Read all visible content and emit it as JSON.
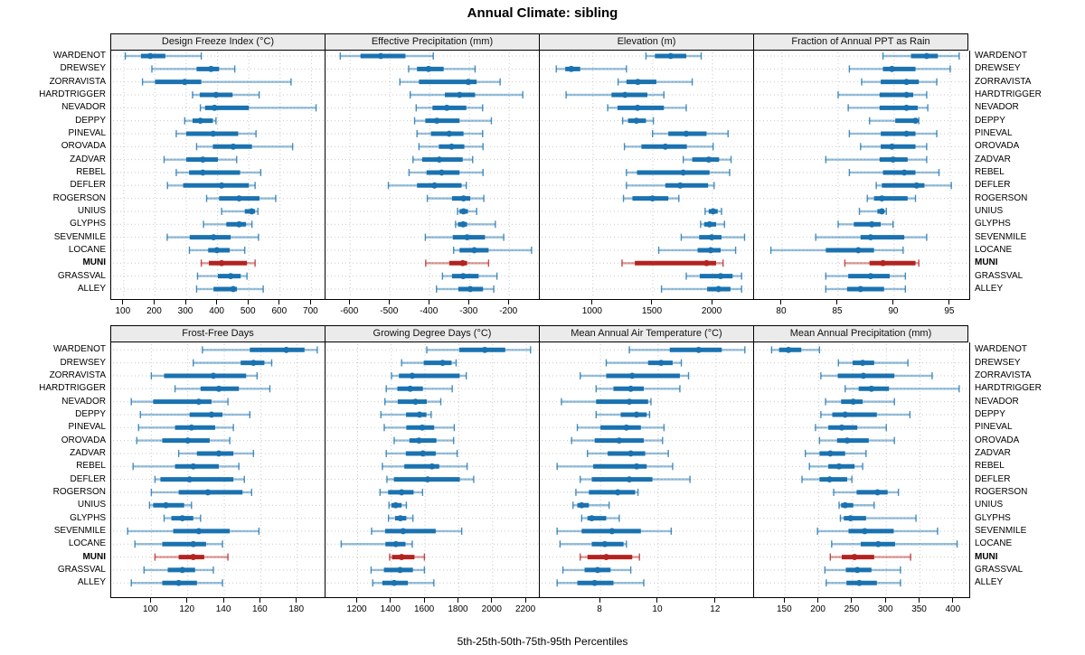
{
  "title": "Annual Climate: sibling",
  "caption": "5th-25th-50th-75th-95th Percentiles",
  "percentile_labels": [
    "5th",
    "25th",
    "50th",
    "75th",
    "95th"
  ],
  "highlight_station": "MUNI",
  "stations": [
    "WARDENOT",
    "DREWSEY",
    "ZORRAVISTA",
    "HARDTRIGGER",
    "NEVADOR",
    "DEPPY",
    "PINEVAL",
    "OROVADA",
    "ZADVAR",
    "REBEL",
    "DEFLER",
    "ROGERSON",
    "UNIUS",
    "GLYPHS",
    "SEVENMILE",
    "LOCANE",
    "MUNI",
    "GRASSVAL",
    "ALLEY"
  ],
  "colors": {
    "blue": "#1a72b0",
    "red": "#b3231f",
    "grid": "#c9c9c9",
    "header_bg": "#ebebeb",
    "border": "#000000"
  },
  "chart_data": [
    {
      "type": "dotplot-percentiles",
      "band": "top",
      "title": "Design Freeze Index (°C)",
      "xticks": [
        100,
        200,
        300,
        400,
        500,
        600,
        700
      ],
      "xlim": [
        60,
        748
      ],
      "values": [
        [
          105,
          155,
          185,
          233,
          348
        ],
        [
          190,
          333,
          379,
          405,
          455
        ],
        [
          160,
          200,
          295,
          348,
          635
        ],
        [
          320,
          343,
          395,
          448,
          533
        ],
        [
          345,
          360,
          390,
          500,
          715
        ],
        [
          295,
          320,
          345,
          385,
          395
        ],
        [
          268,
          300,
          386,
          466,
          523
        ],
        [
          333,
          385,
          450,
          510,
          640
        ],
        [
          229,
          300,
          353,
          401,
          461
        ],
        [
          268,
          309,
          353,
          472,
          538
        ],
        [
          240,
          290,
          413,
          500,
          520
        ],
        [
          365,
          405,
          469,
          534,
          586
        ],
        [
          413,
          487,
          509,
          520,
          529
        ],
        [
          355,
          428,
          469,
          491,
          510
        ],
        [
          239,
          311,
          387,
          442,
          531
        ],
        [
          310,
          370,
          398,
          439,
          487
        ],
        [
          348,
          372,
          413,
          494,
          520
        ],
        [
          336,
          401,
          442,
          474,
          494
        ],
        [
          333,
          387,
          450,
          462,
          546
        ]
      ]
    },
    {
      "type": "dotplot-percentiles",
      "band": "top",
      "title": "Effective Precipitation (mm)",
      "xticks": [
        -600,
        -500,
        -400,
        -300,
        -200
      ],
      "xlim": [
        -662,
        -121
      ],
      "values": [
        [
          -625,
          -574,
          -523,
          -461,
          -391
        ],
        [
          -453,
          -432,
          -403,
          -365,
          -286
        ],
        [
          -475,
          -427,
          -303,
          -282,
          -223
        ],
        [
          -449,
          -362,
          -325,
          -286,
          -166
        ],
        [
          -434,
          -393,
          -357,
          -308,
          -267
        ],
        [
          -438,
          -411,
          -382,
          -325,
          -245
        ],
        [
          -432,
          -397,
          -351,
          -315,
          -267
        ],
        [
          -427,
          -377,
          -345,
          -313,
          -266
        ],
        [
          -442,
          -419,
          -376,
          -317,
          -292
        ],
        [
          -452,
          -408,
          -370,
          -325,
          -266
        ],
        [
          -504,
          -432,
          -388,
          -320,
          -308
        ],
        [
          -406,
          -344,
          -315,
          -298,
          -264
        ],
        [
          -330,
          -325,
          -315,
          -304,
          -282
        ],
        [
          -335,
          -329,
          -316,
          -306,
          -235
        ],
        [
          -411,
          -342,
          -306,
          -261,
          -214
        ],
        [
          -340,
          -325,
          -288,
          -252,
          -144
        ],
        [
          -410,
          -351,
          -317,
          -306,
          -252
        ],
        [
          -368,
          -344,
          -316,
          -277,
          -231
        ],
        [
          -383,
          -328,
          -298,
          -266,
          -239
        ]
      ]
    },
    {
      "type": "dotplot-percentiles",
      "band": "top",
      "title": "Elevation (m)",
      "xticks": [
        1000,
        1500,
        2000
      ],
      "xlim": [
        555,
        2355
      ],
      "values": [
        [
          1443,
          1518,
          1650,
          1780,
          1905
        ],
        [
          693,
          768,
          818,
          893,
          1280
        ],
        [
          1210,
          1280,
          1375,
          1530,
          1830
        ],
        [
          775,
          1155,
          1268,
          1455,
          1593
        ],
        [
          1123,
          1205,
          1373,
          1593,
          1780
        ],
        [
          1248,
          1293,
          1363,
          1443,
          1505
        ],
        [
          1498,
          1630,
          1780,
          1950,
          2130
        ],
        [
          1263,
          1405,
          1605,
          1785,
          2005
        ],
        [
          1755,
          1830,
          1968,
          2055,
          2155
        ],
        [
          1280,
          1368,
          1755,
          1975,
          2143
        ],
        [
          1280,
          1605,
          1730,
          1963,
          2013
        ],
        [
          1255,
          1330,
          1498,
          1630,
          1718
        ],
        [
          1938,
          1968,
          2005,
          2043,
          2075
        ],
        [
          1900,
          1930,
          1975,
          2030,
          2100
        ],
        [
          1738,
          1888,
          1993,
          2075,
          2268
        ],
        [
          1550,
          1875,
          1985,
          2068,
          2193
        ],
        [
          1243,
          1350,
          1950,
          2030,
          2088
        ],
        [
          1780,
          1893,
          2068,
          2168,
          2243
        ],
        [
          1573,
          1955,
          2050,
          2150,
          2243
        ]
      ]
    },
    {
      "type": "dotplot-percentiles",
      "band": "top",
      "title": "Fraction of Annual PPT as Rain",
      "xticks": [
        80,
        85,
        90,
        95
      ],
      "xlim": [
        77.5,
        96.7
      ],
      "values": [
        [
          89,
          91.5,
          92.9,
          93.9,
          95.8
        ],
        [
          86,
          89,
          89.8,
          91.9,
          95
        ],
        [
          87.1,
          88.8,
          91.1,
          92.2,
          93.8
        ],
        [
          85,
          88.7,
          91.1,
          91.7,
          92.9
        ],
        [
          85.9,
          88.7,
          91.1,
          92.1,
          93
        ],
        [
          87.8,
          90.1,
          91.9,
          92.1,
          92.2
        ],
        [
          86,
          88.8,
          91.1,
          91.9,
          93.8
        ],
        [
          87,
          88.8,
          89.8,
          91.9,
          92.9
        ],
        [
          83.9,
          88.7,
          89.9,
          91.2,
          92.9
        ],
        [
          86,
          89,
          90.9,
          91.9,
          94
        ],
        [
          88.4,
          88.9,
          92,
          92.7,
          95.1
        ],
        [
          87.6,
          88.2,
          88.9,
          91.2,
          91.9
        ],
        [
          86.9,
          88.5,
          88.9,
          89.1,
          89.3
        ],
        [
          85,
          86.4,
          88,
          88.8,
          89.9
        ],
        [
          83,
          87,
          87.9,
          90.9,
          92.9
        ],
        [
          79,
          83.9,
          86.8,
          88.2,
          90.8
        ],
        [
          85.6,
          87.8,
          89,
          91.9,
          92.2
        ],
        [
          83.9,
          85.9,
          87.9,
          89.6,
          91
        ],
        [
          83.9,
          85.8,
          87,
          89.1,
          91
        ]
      ]
    },
    {
      "type": "dotplot-percentiles",
      "band": "bottom",
      "title": "Frost-Free Days",
      "xticks": [
        100,
        120,
        140,
        160,
        180
      ],
      "xlim": [
        78,
        196
      ],
      "values": [
        [
          128,
          154,
          174,
          184,
          191
        ],
        [
          123,
          149,
          156,
          162,
          166
        ],
        [
          100,
          107,
          134,
          152,
          158
        ],
        [
          113,
          127,
          137,
          148,
          165
        ],
        [
          89,
          101,
          126,
          133,
          142
        ],
        [
          94,
          121,
          133,
          139,
          154
        ],
        [
          93,
          113,
          122,
          135,
          145
        ],
        [
          92,
          106,
          120,
          132,
          143
        ],
        [
          115,
          125,
          137,
          145,
          156
        ],
        [
          90,
          113,
          123,
          137,
          148
        ],
        [
          102,
          105,
          121,
          145,
          151
        ],
        [
          100,
          115,
          131,
          150,
          155
        ],
        [
          99,
          101,
          108,
          118,
          122
        ],
        [
          107,
          111,
          117,
          123,
          127
        ],
        [
          87,
          112,
          126,
          143,
          159
        ],
        [
          91,
          106,
          123,
          130,
          139
        ],
        [
          102,
          115,
          123,
          129,
          142
        ],
        [
          96,
          109,
          117,
          124,
          134
        ],
        [
          89,
          106,
          115,
          125,
          139
        ]
      ]
    },
    {
      "type": "dotplot-percentiles",
      "band": "bottom",
      "title": "Growing Degree Days (°C)",
      "xticks": [
        1200,
        1400,
        1600,
        1800,
        2000,
        2200
      ],
      "xlim": [
        1010,
        2285
      ],
      "values": [
        [
          1610,
          1803,
          1954,
          2075,
          2225
        ],
        [
          1461,
          1592,
          1704,
          1757,
          1784
        ],
        [
          1401,
          1445,
          1524,
          1805,
          1844
        ],
        [
          1370,
          1436,
          1512,
          1587,
          1761
        ],
        [
          1362,
          1438,
          1543,
          1610,
          1693
        ],
        [
          1338,
          1487,
          1567,
          1608,
          1636
        ],
        [
          1358,
          1489,
          1583,
          1654,
          1773
        ],
        [
          1417,
          1507,
          1564,
          1667,
          1769
        ],
        [
          1370,
          1486,
          1587,
          1663,
          1790
        ],
        [
          1347,
          1477,
          1641,
          1684,
          1849
        ],
        [
          1374,
          1415,
          1615,
          1806,
          1888
        ],
        [
          1333,
          1381,
          1461,
          1532,
          1585
        ],
        [
          1386,
          1401,
          1426,
          1461,
          1489
        ],
        [
          1383,
          1422,
          1454,
          1489,
          1528
        ],
        [
          1283,
          1363,
          1470,
          1663,
          1817
        ],
        [
          1103,
          1365,
          1427,
          1484,
          1524
        ],
        [
          1390,
          1404,
          1461,
          1537,
          1596
        ],
        [
          1280,
          1356,
          1452,
          1528,
          1596
        ],
        [
          1290,
          1347,
          1417,
          1498,
          1652
        ]
      ]
    },
    {
      "type": "dotplot-percentiles",
      "band": "bottom",
      "title": "Mean Annual Air Temperature (°C)",
      "xticks": [
        8,
        10,
        12
      ],
      "xlim": [
        5.9,
        13.35
      ],
      "values": [
        [
          9.0,
          10.4,
          11.4,
          12.2,
          13.0
        ],
        [
          8.2,
          9.65,
          10.1,
          10.5,
          10.8
        ],
        [
          7.3,
          8.2,
          9.1,
          10.75,
          11.05
        ],
        [
          7.85,
          8.45,
          9.05,
          9.5,
          10.75
        ],
        [
          6.65,
          7.85,
          9.0,
          9.65,
          9.75
        ],
        [
          7.85,
          8.7,
          9.25,
          9.6,
          9.7
        ],
        [
          7.2,
          8.0,
          8.9,
          9.4,
          10.2
        ],
        [
          7.0,
          7.8,
          8.65,
          9.5,
          10.15
        ],
        [
          7.55,
          8.25,
          9.05,
          9.55,
          10.35
        ],
        [
          6.5,
          7.75,
          9.25,
          9.6,
          10.5
        ],
        [
          7.3,
          7.7,
          9.0,
          9.8,
          11.1
        ],
        [
          7.15,
          7.6,
          8.6,
          9.2,
          9.3
        ],
        [
          7.05,
          7.2,
          7.35,
          7.6,
          8.3
        ],
        [
          7.35,
          7.55,
          7.7,
          8.2,
          8.65
        ],
        [
          6.5,
          7.35,
          8.4,
          9.4,
          10.45
        ],
        [
          6.6,
          7.7,
          8.15,
          8.8,
          8.9
        ],
        [
          7.3,
          7.55,
          8.2,
          9.1,
          9.35
        ],
        [
          6.7,
          7.45,
          7.9,
          8.35,
          9.05
        ],
        [
          6.5,
          7.2,
          7.8,
          8.45,
          9.5
        ]
      ]
    },
    {
      "type": "dotplot-percentiles",
      "band": "bottom",
      "title": "Mean Annual Precipitation (mm)",
      "xticks": [
        150,
        200,
        250,
        300,
        350,
        400
      ],
      "xlim": [
        104,
        423
      ],
      "values": [
        [
          130,
          141,
          155,
          174,
          201
        ],
        [
          229,
          250,
          265,
          282,
          332
        ],
        [
          203,
          228,
          266,
          312,
          368
        ],
        [
          239,
          259,
          278,
          304,
          408
        ],
        [
          210,
          233,
          251,
          265,
          312
        ],
        [
          203,
          220,
          239,
          286,
          335
        ],
        [
          195,
          214,
          234,
          257,
          300
        ],
        [
          201,
          227,
          242,
          274,
          312
        ],
        [
          180,
          201,
          217,
          239,
          270
        ],
        [
          186,
          214,
          230,
          253,
          265
        ],
        [
          175,
          201,
          216,
          242,
          249
        ],
        [
          222,
          256,
          287,
          302,
          318
        ],
        [
          230,
          233,
          239,
          251,
          282
        ],
        [
          232,
          237,
          247,
          270,
          344
        ],
        [
          198,
          244,
          268,
          311,
          376
        ],
        [
          219,
          262,
          288,
          313,
          405
        ],
        [
          217,
          234,
          253,
          282,
          336
        ],
        [
          209,
          240,
          257,
          278,
          321
        ],
        [
          211,
          241,
          260,
          286,
          321
        ]
      ]
    }
  ]
}
